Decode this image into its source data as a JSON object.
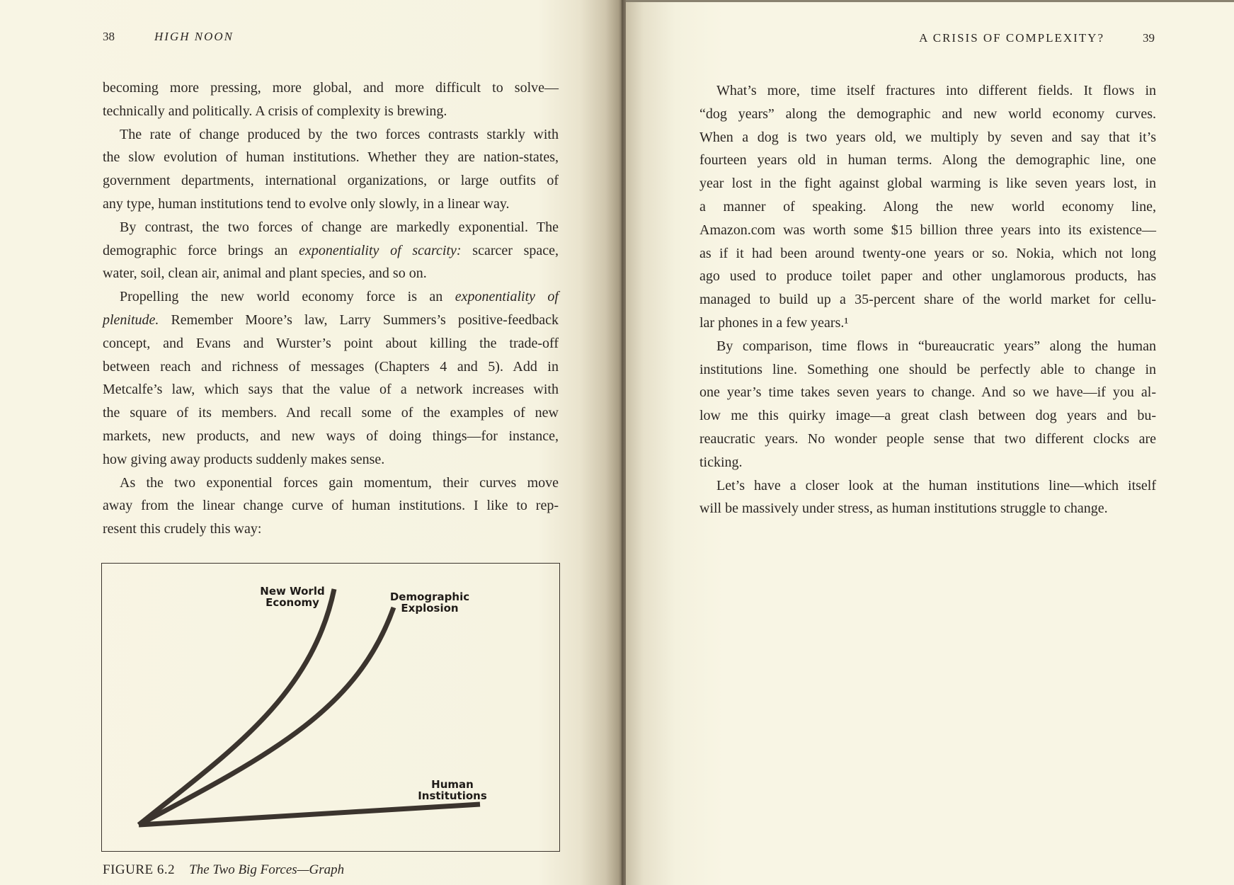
{
  "left_page": {
    "folio": "38",
    "running_head": "HIGH NOON",
    "paragraphs": [
      {
        "indent": false,
        "lines": [
          "becoming more pressing, more global, and more difficult to solve—",
          "technically and politically. A crisis of complexity is brewing."
        ]
      },
      {
        "indent": true,
        "lines": [
          "The rate of change produced by the two forces contrasts starkly with",
          "the slow evolution of human institutions. Whether they are nation-states,",
          "government departments, international organizations, or large outfits of",
          "any type, human institutions tend to evolve only slowly, in a linear way."
        ]
      },
      {
        "indent": true,
        "lines": [
          "By contrast, the two forces of change are markedly exponential. The",
          [
            {
              "t": "demographic force brings an "
            },
            {
              "t": "exponentiality of scarcity:",
              "i": true
            },
            {
              "t": " scarcer space,"
            }
          ],
          "water, soil, clean air, animal and plant species, and so on."
        ]
      },
      {
        "indent": true,
        "lines": [
          [
            {
              "t": "Propelling the new world economy force is an "
            },
            {
              "t": "exponentiality of",
              "i": true
            }
          ],
          [
            {
              "t": "plenitude.",
              "i": true
            },
            {
              "t": " Remember Moore’s law, Larry Summers’s positive-feedback"
            }
          ],
          "concept, and Evans and Wurster’s point about killing the trade-off",
          "between reach and richness of messages (Chapters 4 and 5). Add in",
          "Metcalfe’s law, which says that the value of a network increases with",
          "the square of its members. And recall some of the examples of new",
          "markets, new products, and new ways of doing things—for instance,",
          "how giving away products suddenly makes sense."
        ]
      },
      {
        "indent": true,
        "lines": [
          "As the two exponential forces gain momentum, their curves move",
          "away from the linear change curve of human institutions. I like to rep-",
          "resent this crudely this way:"
        ]
      }
    ],
    "figure": {
      "labels": {
        "new_world_1": "New World",
        "new_world_2": "Economy",
        "demographic_1": "Demographic",
        "demographic_2": "Explosion",
        "human_1": "Human",
        "human_2": "Institutions"
      },
      "caption_number": "FIGURE 6.2",
      "caption_title": "The Two Big Forces—Graph",
      "line_color": "#3b342e"
    }
  },
  "right_page": {
    "folio": "39",
    "running_head": "A CRISIS OF COMPLEXITY?",
    "paragraphs": [
      {
        "indent": true,
        "lines": [
          "What’s more, time itself fractures into different fields. It flows in",
          "“dog years” along the demographic and new world economy curves.",
          "When a dog is two years old, we multiply by seven and say that it’s",
          "fourteen years old in human terms. Along the demographic line, one",
          "year lost in the fight against global warming is like seven years lost, in",
          "a manner of speaking. Along the new world economy line,",
          "Amazon.com was worth some $15 billion three years into its existence—",
          "as if it had been around twenty-one years or so. Nokia, which not long",
          "ago used to produce toilet paper and other unglamorous products, has",
          "managed to build up a 35-percent share of the world market for cellu-",
          "lar phones in a few years.¹"
        ]
      },
      {
        "indent": true,
        "lines": [
          "By comparison, time flows in “bureaucratic years” along the human",
          "institutions line. Something one should be perfectly able to change in",
          "one year’s time takes seven years to change. And so we have—if you al-",
          "low me this quirky image—a great clash between dog years and bu-",
          "reaucratic years. No wonder people sense that two different clocks are",
          "ticking."
        ]
      },
      {
        "indent": true,
        "lines": [
          "Let’s have a closer look at the human institutions line—which itself",
          "will be massively under stress, as human institutions struggle to change."
        ]
      }
    ]
  }
}
